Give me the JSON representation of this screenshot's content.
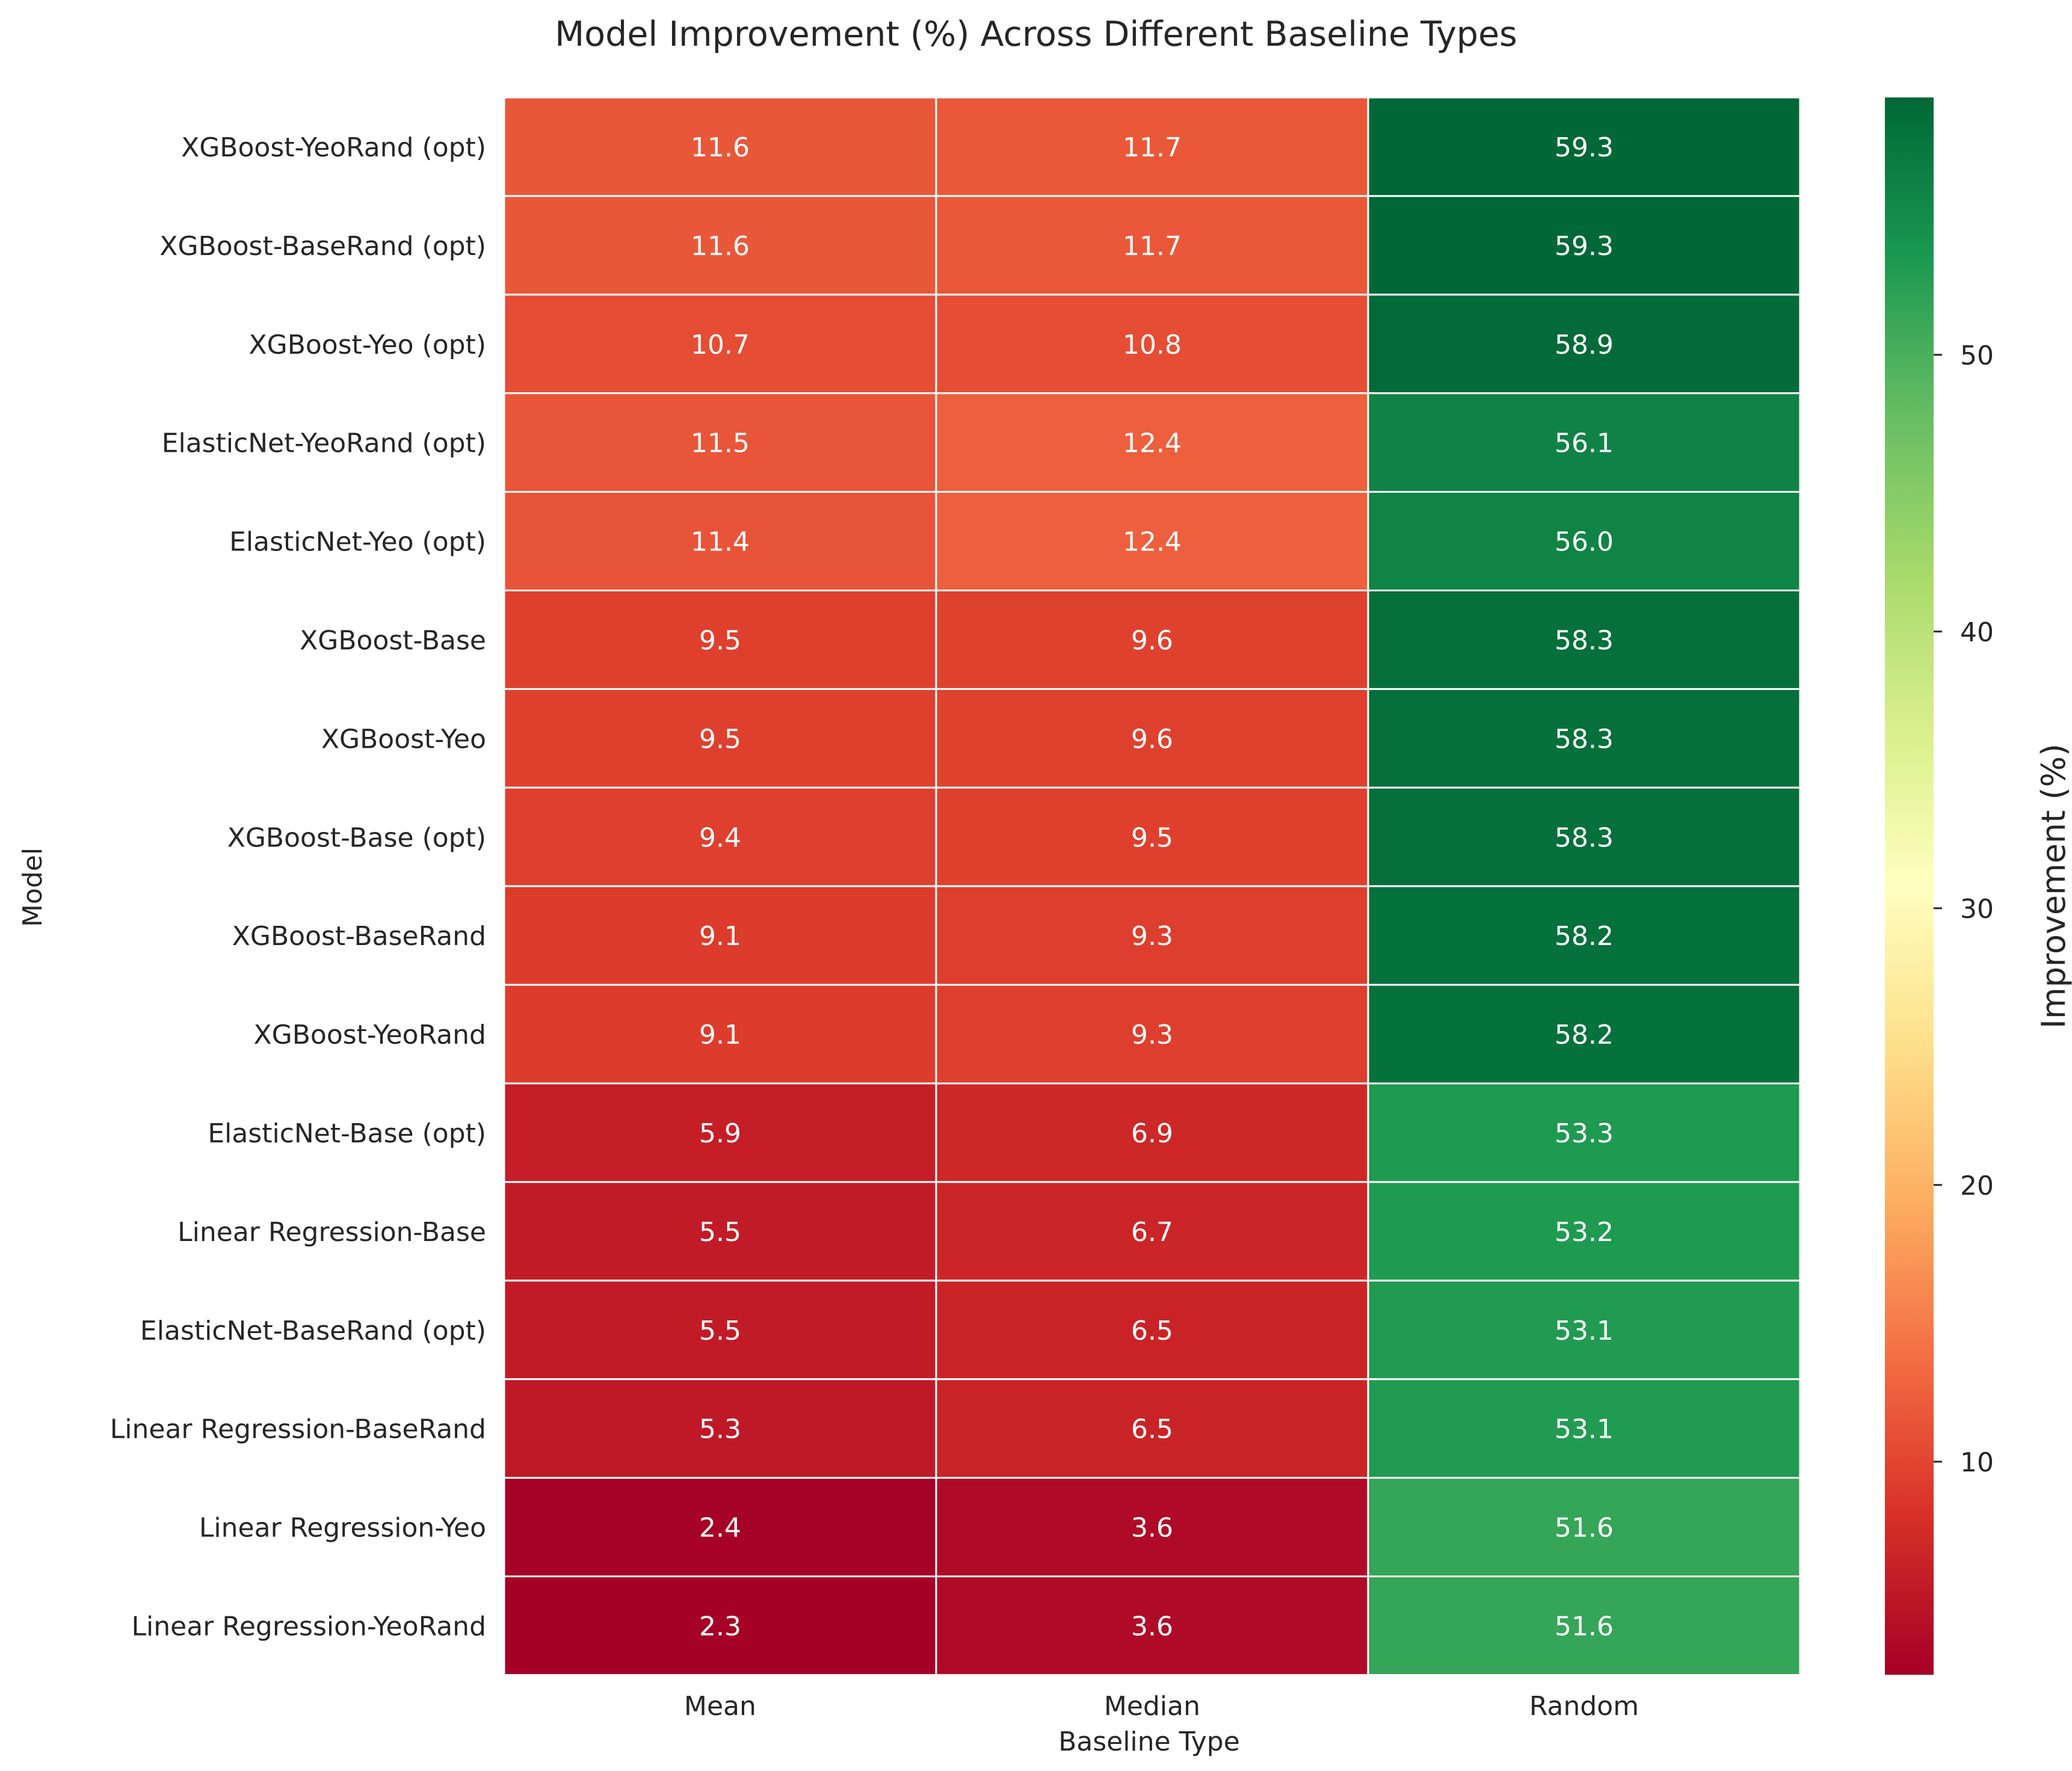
{
  "chart_data": {
    "type": "heatmap",
    "title": "Model Improvement (%) Across Different Baseline Types",
    "xlabel": "Baseline Type",
    "ylabel": "Model",
    "colorbar_label": "Improvement (%)",
    "colormap": "RdYlGn",
    "vmin": 2.3,
    "vmax": 59.3,
    "colorbar_ticks": [
      "10",
      "20",
      "30",
      "40",
      "50"
    ],
    "colorbar_tick_values": [
      10,
      20,
      30,
      40,
      50
    ],
    "columns": [
      "Mean",
      "Median",
      "Random"
    ],
    "rows": [
      "XGBoost-YeoRand (opt)",
      "XGBoost-BaseRand (opt)",
      "XGBoost-Yeo (opt)",
      "ElasticNet-YeoRand (opt)",
      "ElasticNet-Yeo (opt)",
      "XGBoost-Base",
      "XGBoost-Yeo",
      "XGBoost-Base (opt)",
      "XGBoost-BaseRand",
      "XGBoost-YeoRand",
      "ElasticNet-Base (opt)",
      "Linear Regression-Base",
      "ElasticNet-BaseRand (opt)",
      "Linear Regression-BaseRand",
      "Linear Regression-Yeo",
      "Linear Regression-YeoRand"
    ],
    "values": [
      [
        "11.6",
        "11.7",
        "59.3"
      ],
      [
        "11.6",
        "11.7",
        "59.3"
      ],
      [
        "10.7",
        "10.8",
        "58.9"
      ],
      [
        "11.5",
        "12.4",
        "56.1"
      ],
      [
        "11.4",
        "12.4",
        "56.0"
      ],
      [
        "9.5",
        "9.6",
        "58.3"
      ],
      [
        "9.5",
        "9.6",
        "58.3"
      ],
      [
        "9.4",
        "9.5",
        "58.3"
      ],
      [
        "9.1",
        "9.3",
        "58.2"
      ],
      [
        "9.1",
        "9.3",
        "58.2"
      ],
      [
        "5.9",
        "6.9",
        "53.3"
      ],
      [
        "5.5",
        "6.7",
        "53.2"
      ],
      [
        "5.5",
        "6.5",
        "53.1"
      ],
      [
        "5.3",
        "6.5",
        "53.1"
      ],
      [
        "2.4",
        "3.6",
        "51.6"
      ],
      [
        "2.3",
        "3.6",
        "51.6"
      ]
    ]
  }
}
